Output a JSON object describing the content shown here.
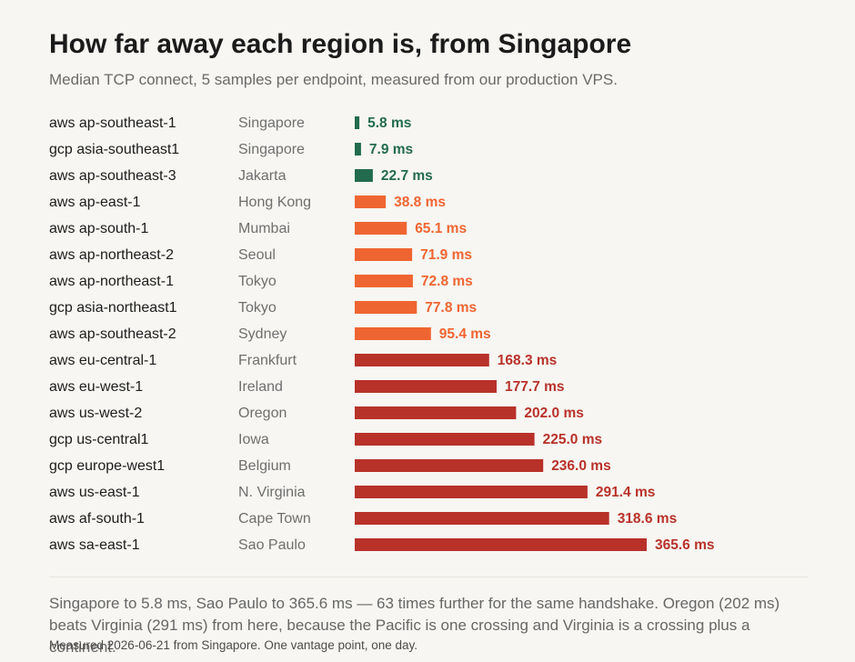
{
  "title": "How far away each region is, from Singapore",
  "subtitle": "Median TCP connect, 5 samples per endpoint, measured from our production VPS.",
  "colors": {
    "near": "#236b4e",
    "mid": "#ef6531",
    "far": "#b8322a",
    "label": "#1d1d1d",
    "region": "#6f6f6f"
  },
  "chart_data": {
    "type": "bar",
    "orientation": "horizontal",
    "unit": "ms",
    "xlim": [
      0,
      400
    ],
    "grid": false,
    "legend": "none",
    "rows": [
      {
        "endpoint": "aws ap-southeast-1",
        "region": "Singapore",
        "value": 5.8,
        "label": "5.8 ms",
        "tier": "near"
      },
      {
        "endpoint": "gcp asia-southeast1",
        "region": "Singapore",
        "value": 7.9,
        "label": "7.9 ms",
        "tier": "near"
      },
      {
        "endpoint": "aws ap-southeast-3",
        "region": "Jakarta",
        "value": 22.7,
        "label": "22.7 ms",
        "tier": "near"
      },
      {
        "endpoint": "aws ap-east-1",
        "region": "Hong Kong",
        "value": 38.8,
        "label": "38.8 ms",
        "tier": "mid"
      },
      {
        "endpoint": "aws ap-south-1",
        "region": "Mumbai",
        "value": 65.1,
        "label": "65.1 ms",
        "tier": "mid"
      },
      {
        "endpoint": "aws ap-northeast-2",
        "region": "Seoul",
        "value": 71.9,
        "label": "71.9 ms",
        "tier": "mid"
      },
      {
        "endpoint": "aws ap-northeast-1",
        "region": "Tokyo",
        "value": 72.8,
        "label": "72.8 ms",
        "tier": "mid"
      },
      {
        "endpoint": "gcp asia-northeast1",
        "region": "Tokyo",
        "value": 77.8,
        "label": "77.8 ms",
        "tier": "mid"
      },
      {
        "endpoint": "aws ap-southeast-2",
        "region": "Sydney",
        "value": 95.4,
        "label": "95.4 ms",
        "tier": "mid"
      },
      {
        "endpoint": "aws eu-central-1",
        "region": "Frankfurt",
        "value": 168.3,
        "label": "168.3 ms",
        "tier": "far"
      },
      {
        "endpoint": "aws eu-west-1",
        "region": "Ireland",
        "value": 177.7,
        "label": "177.7 ms",
        "tier": "far"
      },
      {
        "endpoint": "aws us-west-2",
        "region": "Oregon",
        "value": 202.0,
        "label": "202.0 ms",
        "tier": "far"
      },
      {
        "endpoint": "gcp us-central1",
        "region": "Iowa",
        "value": 225.0,
        "label": "225.0 ms",
        "tier": "far"
      },
      {
        "endpoint": "gcp europe-west1",
        "region": "Belgium",
        "value": 236.0,
        "label": "236.0 ms",
        "tier": "far"
      },
      {
        "endpoint": "aws us-east-1",
        "region": "N. Virginia",
        "value": 291.4,
        "label": "291.4 ms",
        "tier": "far"
      },
      {
        "endpoint": "aws af-south-1",
        "region": "Cape Town",
        "value": 318.6,
        "label": "318.6 ms",
        "tier": "far"
      },
      {
        "endpoint": "aws sa-east-1",
        "region": "Sao Paulo",
        "value": 365.6,
        "label": "365.6 ms",
        "tier": "far"
      }
    ]
  },
  "note": "Singapore to 5.8 ms, Sao Paulo to 365.6 ms — 63 times further for the same handshake. Oregon (202 ms) beats Virginia (291 ms) from here, because the Pacific is one crossing and Virginia is a crossing plus a continent.",
  "footnote": "Measured 2026-06-21 from Singapore. One vantage point, one day."
}
